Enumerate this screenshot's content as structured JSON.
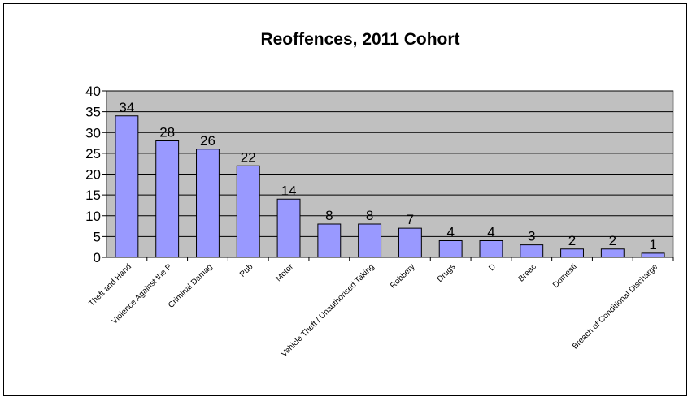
{
  "chart_data": {
    "type": "bar",
    "title": "Reoffences, 2011 Cohort",
    "xlabel": "",
    "ylabel": "",
    "ylim": [
      0,
      40
    ],
    "yticks": [
      "0",
      "5",
      "10",
      "15",
      "20",
      "25",
      "30",
      "35",
      "40"
    ],
    "categories": [
      "Theft and Hand",
      "Violence Against the P",
      "Criminal Damag",
      "Pub",
      "Motor",
      "",
      "Vehicle Theft / Unauthorised Taking",
      "Robbery",
      "Drugs",
      "D",
      "Breac",
      "Domesti",
      "",
      "Breach of Conditional Discharge"
    ],
    "values": [
      34,
      28,
      26,
      22,
      14,
      8,
      8,
      7,
      4,
      4,
      3,
      2,
      2,
      1
    ],
    "grid": true,
    "legend": "none",
    "colors": {
      "bar_fill": "#9999ff",
      "bar_stroke": "#000000",
      "plot_bg": "#c0c0c0",
      "gridline": "#000000"
    }
  }
}
